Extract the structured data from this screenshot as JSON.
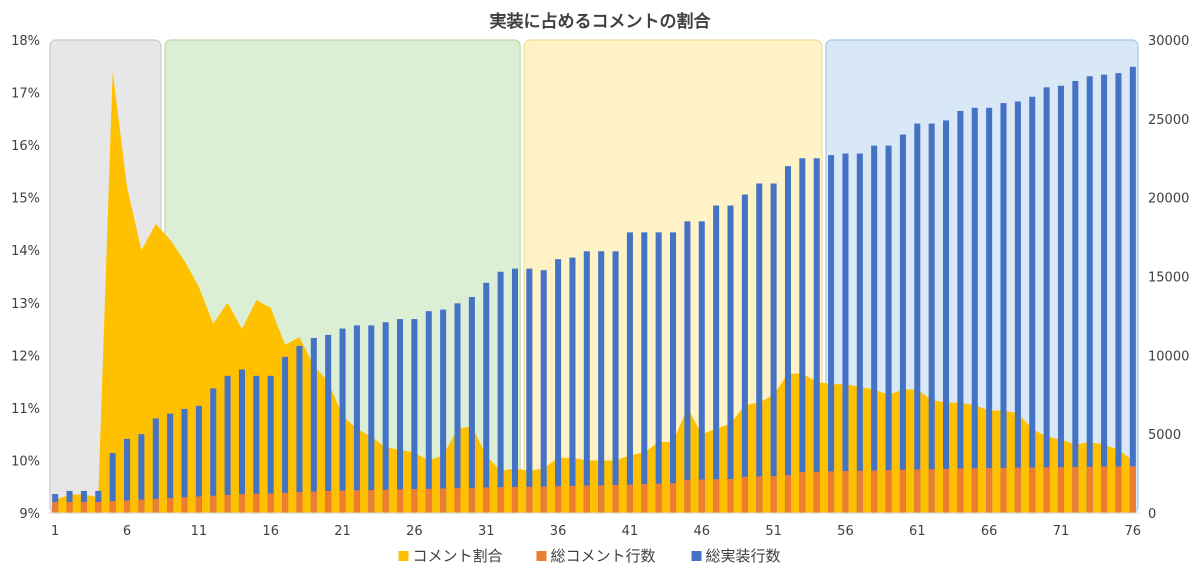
{
  "chart_data": {
    "type": "bar",
    "title": "実装に占めるコメントの割合",
    "x_tick_labels": [
      "1",
      "6",
      "11",
      "16",
      "21",
      "26",
      "31",
      "36",
      "41",
      "46",
      "51",
      "56",
      "61",
      "66",
      "71",
      "76"
    ],
    "categories": [
      1,
      2,
      3,
      4,
      5,
      6,
      7,
      8,
      9,
      10,
      11,
      12,
      13,
      14,
      15,
      16,
      17,
      18,
      19,
      20,
      21,
      22,
      23,
      24,
      25,
      26,
      27,
      28,
      29,
      30,
      31,
      32,
      33,
      34,
      35,
      36,
      37,
      38,
      39,
      40,
      41,
      42,
      43,
      44,
      45,
      46,
      47,
      48,
      49,
      50,
      51,
      52,
      53,
      54,
      55,
      56,
      57,
      58,
      59,
      60,
      61,
      62,
      63,
      64,
      65,
      66,
      67,
      68,
      69,
      70,
      71,
      72,
      73,
      74,
      75,
      76
    ],
    "y_left": {
      "min": 0.09,
      "max": 0.18,
      "ticks": [
        "9%",
        "10%",
        "11%",
        "12%",
        "13%",
        "14%",
        "15%",
        "16%",
        "17%",
        "18%"
      ]
    },
    "y_right": {
      "min": 0,
      "max": 30000,
      "ticks": [
        "0",
        "5000",
        "10000",
        "15000",
        "20000",
        "25000",
        "30000"
      ]
    },
    "legend": {
      "position": "bottom"
    },
    "phases": [
      {
        "from": 1,
        "to": 8,
        "color": "#e7e7e7",
        "border": "#c8c8c8"
      },
      {
        "from": 9,
        "to": 33,
        "color": "#dcefd4",
        "border": "#b9d8ab"
      },
      {
        "from": 34,
        "to": 54,
        "color": "#fff2c7",
        "border": "#f1dc96"
      },
      {
        "from": 55,
        "to": 76,
        "color": "#d9e8f6",
        "border": "#a8c8e8"
      }
    ],
    "series": [
      {
        "name": "コメント割合",
        "type": "area",
        "axis": "left",
        "color": "#ffc000",
        "values": [
          0.0925,
          0.0935,
          0.0935,
          0.093,
          0.174,
          0.152,
          0.14,
          0.145,
          0.142,
          0.138,
          0.133,
          0.126,
          0.13,
          0.125,
          0.1305,
          0.129,
          0.122,
          0.1235,
          0.118,
          0.115,
          0.1085,
          0.106,
          0.1045,
          0.1025,
          0.102,
          0.1015,
          0.1,
          0.101,
          0.106,
          0.1065,
          0.101,
          0.098,
          0.0985,
          0.098,
          0.0985,
          0.1005,
          0.1005,
          0.1,
          0.1,
          0.1,
          0.101,
          0.1015,
          0.1035,
          0.1035,
          0.11,
          0.105,
          0.106,
          0.107,
          0.1105,
          0.111,
          0.1125,
          0.1165,
          0.1165,
          0.115,
          0.1145,
          0.1145,
          0.114,
          0.1135,
          0.1125,
          0.1135,
          0.1135,
          0.1115,
          0.111,
          0.111,
          0.1105,
          0.1095,
          0.1095,
          0.109,
          0.106,
          0.1045,
          0.104,
          0.103,
          0.1035,
          0.103,
          0.102,
          0.1
        ]
      },
      {
        "name": "総コメント行数",
        "type": "bar",
        "axis": "right",
        "color": "#ed7d31",
        "values": [
          700,
          700,
          700,
          700,
          750,
          800,
          850,
          900,
          950,
          1000,
          1050,
          1100,
          1150,
          1200,
          1220,
          1240,
          1280,
          1320,
          1360,
          1400,
          1420,
          1440,
          1460,
          1480,
          1500,
          1520,
          1540,
          1560,
          1580,
          1600,
          1620,
          1640,
          1650,
          1660,
          1680,
          1700,
          1720,
          1740,
          1760,
          1780,
          1800,
          1830,
          1860,
          1890,
          2100,
          2120,
          2140,
          2160,
          2300,
          2320,
          2340,
          2400,
          2600,
          2620,
          2640,
          2660,
          2680,
          2700,
          2720,
          2740,
          2760,
          2780,
          2800,
          2820,
          2840,
          2860,
          2870,
          2880,
          2890,
          2900,
          2910,
          2920,
          2930,
          2940,
          2950,
          2960
        ]
      },
      {
        "name": "総実装行数",
        "type": "bar",
        "axis": "right",
        "color": "#4472c4",
        "values": [
          1200,
          1400,
          1400,
          1400,
          3800,
          4700,
          5000,
          6000,
          6300,
          6600,
          6800,
          7900,
          8700,
          9100,
          8700,
          8700,
          9900,
          10600,
          11100,
          11300,
          11700,
          11900,
          11900,
          12100,
          12300,
          12300,
          12800,
          12900,
          13300,
          13700,
          14600,
          15300,
          15500,
          15500,
          15400,
          16100,
          16200,
          16600,
          16600,
          16600,
          17800,
          17800,
          17800,
          17800,
          18500,
          18500,
          19500,
          19500,
          20200,
          20900,
          20900,
          22000,
          22500,
          22500,
          22700,
          22800,
          22800,
          23300,
          23300,
          24000,
          24700,
          24700,
          24900,
          25500,
          25700,
          25700,
          26000,
          26100,
          26400,
          27000,
          27100,
          27400,
          27700,
          27800,
          27900,
          28300
        ]
      }
    ]
  }
}
